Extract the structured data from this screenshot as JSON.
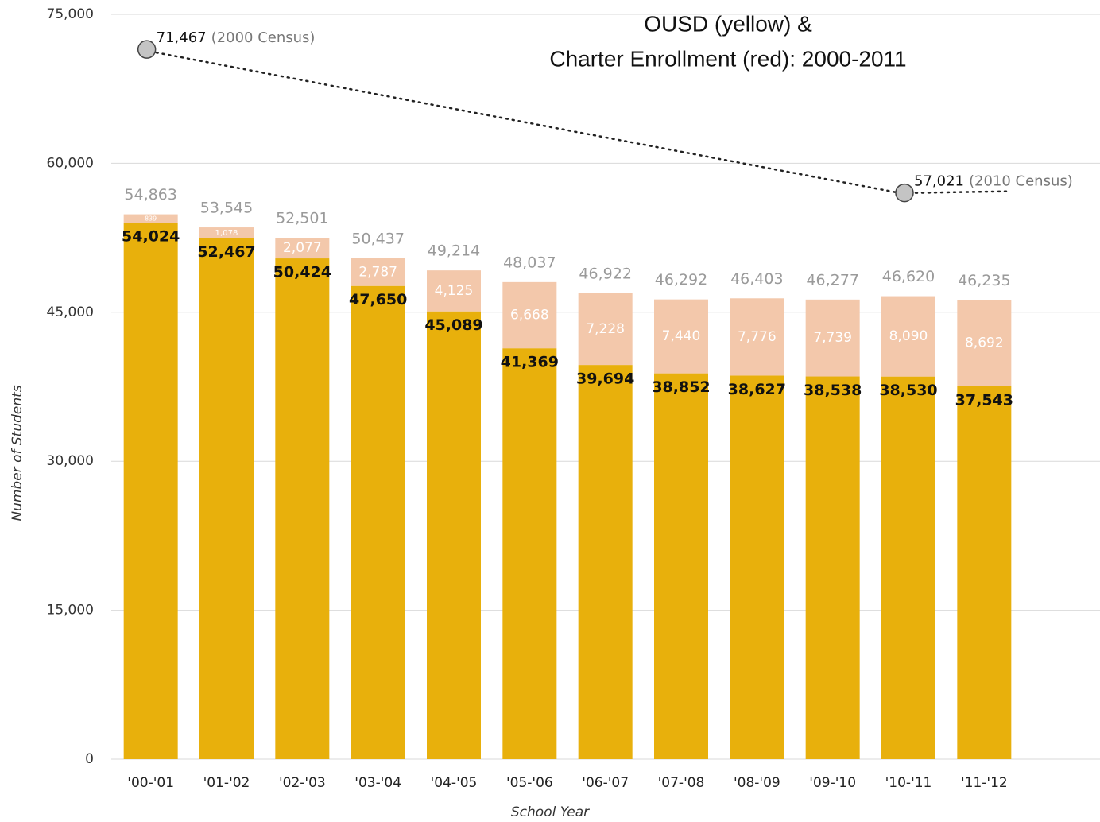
{
  "chart_data": {
    "type": "stacked_bar",
    "title": [
      "OUSD (yellow) &",
      "Charter Enrollment (red): 2000-2011"
    ],
    "x_label": "School Year",
    "y_label": "Number of Students",
    "categories": [
      "'00-'01",
      "'01-'02",
      "'02-'03",
      "'03-'04",
      "'04-'05",
      "'05-'06",
      "'06-'07",
      "'07-'08",
      "'08-'09",
      "'09-'10",
      "'10-'11",
      "'11-'12"
    ],
    "series": [
      {
        "name": "OUSD",
        "color": "#e8b00c",
        "values": [
          54024,
          52467,
          50424,
          47650,
          45089,
          41369,
          39694,
          38852,
          38627,
          38538,
          38530,
          37543
        ],
        "value_labels": [
          "54,024",
          "52,467",
          "50,424",
          "47,650",
          "45,089",
          "41,369",
          "39,694",
          "38,852",
          "38,627",
          "38,538",
          "38,530",
          "37,543"
        ]
      },
      {
        "name": "Charter",
        "color": "#f3c8ab",
        "values": [
          839,
          1078,
          2077,
          2787,
          4125,
          6668,
          7228,
          7440,
          7776,
          7739,
          8090,
          8692
        ],
        "value_labels": [
          "839",
          "1,078",
          "2,077",
          "2,787",
          "4,125",
          "6,668",
          "7,228",
          "7,440",
          "7,776",
          "7,739",
          "8,090",
          "8,692"
        ]
      }
    ],
    "totals": [
      54863,
      53545,
      52501,
      50437,
      49214,
      48037,
      46922,
      46292,
      46403,
      46277,
      46620,
      46235
    ],
    "total_labels": [
      "54,863",
      "53,545",
      "52,501",
      "50,437",
      "49,214",
      "48,037",
      "46,922",
      "46,292",
      "46,403",
      "46,277",
      "46,620",
      "46,235"
    ],
    "census": [
      {
        "category": "'00-'01",
        "value": 71467,
        "label": "71,467",
        "note": "(2000 Census)"
      },
      {
        "category": "'10-'11",
        "value": 57021,
        "label": "57,021",
        "note": "(2010 Census)"
      }
    ],
    "ylim": [
      0,
      75000
    ],
    "yticks": [
      0,
      {
        "value": 15000,
        "label": "15,000"
      },
      {
        "value": 30000,
        "label": "30,000"
      },
      {
        "value": 45000,
        "label": "45,000"
      },
      {
        "value": 60000,
        "label": "60,000"
      },
      {
        "value": 75000,
        "label": "75,000"
      }
    ],
    "grid": true
  }
}
